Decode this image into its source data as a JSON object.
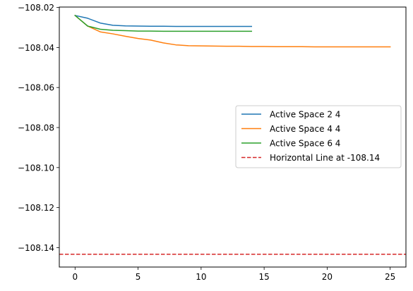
{
  "chart_data": {
    "type": "line",
    "title": "",
    "xlabel": "",
    "ylabel": "",
    "xlim": [
      -1.25,
      26.25
    ],
    "ylim": [
      -108.1497,
      -108.0198
    ],
    "x_ticks": [
      0,
      5,
      10,
      15,
      20,
      25
    ],
    "x_tick_labels": [
      "0",
      "5",
      "10",
      "15",
      "20",
      "25"
    ],
    "y_ticks": [
      -108.02,
      -108.04,
      -108.06,
      -108.08,
      -108.1,
      -108.12,
      -108.14
    ],
    "y_tick_labels": [
      "−108.02",
      "−108.04",
      "−108.06",
      "−108.08",
      "−108.10",
      "−108.12",
      "−108.14"
    ],
    "grid": false,
    "legend_position": "center-right",
    "series": [
      {
        "name": "Active Space 2 4",
        "color": "#1f77b4",
        "dash": "solid",
        "x": [
          0,
          1,
          2,
          3,
          4,
          5,
          6,
          7,
          8,
          9,
          10,
          11,
          12,
          13,
          14
        ],
        "y": [
          -108.024,
          -108.0254,
          -108.0278,
          -108.0289,
          -108.0292,
          -108.0293,
          -108.0294,
          -108.0294,
          -108.0295,
          -108.0295,
          -108.0295,
          -108.0295,
          -108.0295,
          -108.0295,
          -108.0295
        ]
      },
      {
        "name": "Active Space 4 4",
        "color": "#ff7f0e",
        "dash": "solid",
        "x": [
          0,
          1,
          2,
          3,
          4,
          5,
          6,
          7,
          8,
          9,
          10,
          11,
          12,
          13,
          14,
          15,
          16,
          17,
          18,
          19,
          20,
          21,
          22,
          23,
          24,
          25
        ],
        "y": [
          -108.024,
          -108.0293,
          -108.0322,
          -108.0332,
          -108.0344,
          -108.0355,
          -108.0363,
          -108.0377,
          -108.0387,
          -108.0391,
          -108.0392,
          -108.0393,
          -108.0394,
          -108.0394,
          -108.0395,
          -108.0395,
          -108.0396,
          -108.0396,
          -108.0396,
          -108.0397,
          -108.0397,
          -108.0397,
          -108.0397,
          -108.0397,
          -108.0397,
          -108.0397
        ]
      },
      {
        "name": "Active Space 6 4",
        "color": "#2ca02c",
        "dash": "solid",
        "x": [
          0,
          1,
          2,
          3,
          4,
          5,
          6,
          7,
          8,
          9,
          10,
          11,
          12,
          13,
          14
        ],
        "y": [
          -108.024,
          -108.0293,
          -108.0309,
          -108.0314,
          -108.0316,
          -108.0318,
          -108.0318,
          -108.0319,
          -108.0319,
          -108.0319,
          -108.0319,
          -108.0319,
          -108.0319,
          -108.0319,
          -108.0319
        ]
      },
      {
        "name": "Horizontal Line at -108.14",
        "color": "#d62728",
        "dash": "dashed",
        "hline": -108.1433
      }
    ]
  }
}
